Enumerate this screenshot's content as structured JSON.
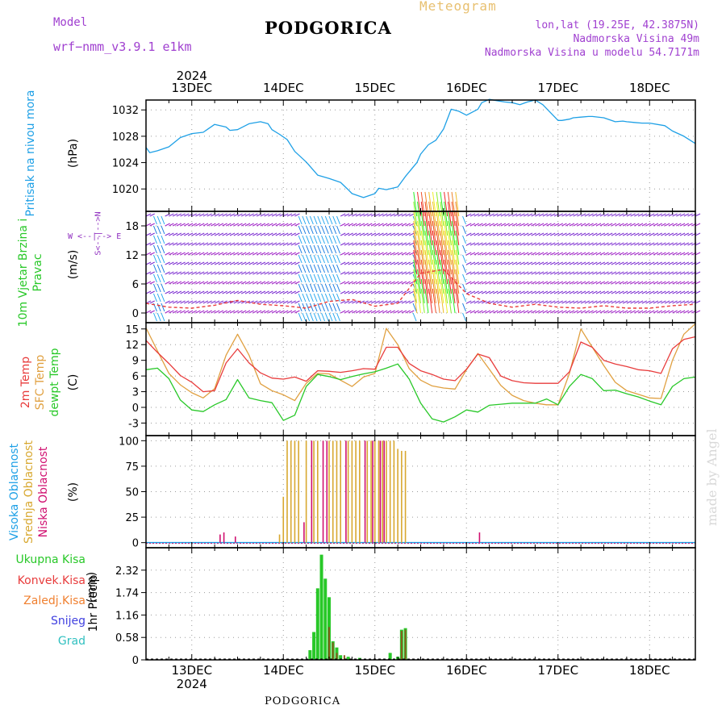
{
  "header": {
    "model_label": "Model",
    "model_name": "wrf−nmm_v3.9.1  e1km",
    "title": "PODGORICA",
    "subtitle": "Meteogram",
    "location": "lon,lat (19.25E, 42.3875N)",
    "elevation": "Nadmorska Visina 49m",
    "model_elevation": "Nadmorska Visina u modelu 54.7171m",
    "credit": "made by Angel",
    "footer": "PODGORICA",
    "year": "2024"
  },
  "colors": {
    "pressure": "#1ea0e6",
    "temp2m": "#e83c3c",
    "sfc": "#e0a040",
    "dewpt": "#28c828",
    "high_cloud": "#1ea0e6",
    "mid_cloud": "#d8a830",
    "low_cloud": "#d01070",
    "total_precip": "#28c828",
    "conv_precip": "#e83c3c",
    "frozen_precip": "#f08030",
    "snow": "#4040e0",
    "hail": "#30c0c0",
    "purple": "#9030c0"
  },
  "chart_data": [
    {
      "type": "line",
      "panel": "pressure",
      "ylabel": "Pritisak na nivou mora",
      "unit": "(hPa)",
      "x_dates": [
        "13DEC",
        "14DEC",
        "15DEC",
        "16DEC",
        "17DEC",
        "18DEC"
      ],
      "x_range_hours": [
        -12,
        132
      ],
      "ylim": [
        1016.6,
        1033.5
      ],
      "yticks": [
        1020,
        1024,
        1028,
        1032
      ],
      "series": [
        {
          "key": "pressure",
          "x": [
            -12,
            -11,
            -9,
            -6,
            -3,
            0,
            3,
            6,
            9,
            10,
            12,
            15,
            18,
            20,
            21,
            23,
            25,
            27,
            30,
            33,
            36,
            39,
            41,
            42,
            45,
            48,
            49,
            51,
            54,
            56,
            59,
            60,
            62,
            64,
            66,
            68,
            70,
            72,
            75,
            76,
            78,
            80,
            82,
            84,
            86,
            88,
            90,
            92,
            96,
            97,
            99,
            100,
            102,
            104,
            105,
            108,
            111,
            113,
            114,
            116,
            118,
            120,
            124,
            126,
            129,
            132
          ],
          "y": [
            1026.3,
            1025.5,
            1025.8,
            1026.4,
            1027.8,
            1028.4,
            1028.6,
            1029.8,
            1029.4,
            1028.9,
            1029.0,
            1029.9,
            1030.2,
            1029.9,
            1029.0,
            1028.3,
            1027.5,
            1025.7,
            1024.1,
            1022.1,
            1021.6,
            1021.0,
            1019.9,
            1019.3,
            1018.7,
            1019.3,
            1020.1,
            1019.9,
            1020.3,
            1021.9,
            1024.0,
            1025.3,
            1026.7,
            1027.4,
            1029.1,
            1032.1,
            1031.8,
            1031.2,
            1032.1,
            1033.1,
            1033.6,
            1033.4,
            1033.2,
            1033.1,
            1032.8,
            1033.2,
            1033.5,
            1032.8,
            1030.4,
            1030.4,
            1030.6,
            1030.8,
            1030.9,
            1031.0,
            1031.0,
            1030.8,
            1030.2,
            1030.3,
            1030.2,
            1030.1,
            1030.0,
            1030.0,
            1029.6,
            1028.8,
            1028.0,
            1026.9
          ]
        }
      ]
    },
    {
      "type": "line",
      "panel": "wind",
      "ylabel": "10m Vjetar Brzina i Pravac",
      "unit": "(m/s)",
      "direction_legend": "W <--|--> E",
      "direction_legend_v": "S<--|-->N",
      "ylim": [
        -2,
        21
      ],
      "yticks": [
        0,
        6,
        12,
        18
      ],
      "series": [
        {
          "key": "wind_speed",
          "x": [
            -12,
            -6,
            0,
            6,
            12,
            18,
            24,
            30,
            36,
            42,
            48,
            54,
            60,
            66,
            72,
            78,
            84,
            90,
            96,
            102,
            108,
            114,
            120,
            126,
            132
          ],
          "y": [
            2.0,
            1.2,
            1.0,
            1.6,
            2.6,
            1.8,
            1.5,
            1.0,
            2.4,
            2.8,
            1.4,
            2.0,
            8.2,
            9.0,
            4.0,
            2.0,
            1.2,
            1.8,
            1.2,
            1.0,
            1.5,
            1.0,
            1.0,
            1.5,
            1.8
          ]
        }
      ],
      "strong_wind_interval_hours": [
        59,
        70
      ]
    },
    {
      "type": "line",
      "panel": "temperature",
      "ylabel": [
        "2m Temp",
        "SFC Temp",
        "dewpt Temp"
      ],
      "unit": "(C)",
      "ylim": [
        -5.4,
        16.2
      ],
      "yticks": [
        -3,
        0,
        3,
        6,
        9,
        12,
        15
      ],
      "series": [
        {
          "key": "t2m",
          "name": "2m Temp",
          "x": [
            -12,
            -9,
            -6,
            -3,
            0,
            3,
            6,
            9,
            12,
            15,
            18,
            21,
            24,
            27,
            30,
            33,
            36,
            39,
            42,
            45,
            48,
            51,
            54,
            57,
            60,
            63,
            66,
            69,
            72,
            75,
            78,
            81,
            84,
            87,
            90,
            93,
            96,
            99,
            102,
            105,
            108,
            111,
            114,
            117,
            120,
            123,
            126,
            129,
            132
          ],
          "y": [
            12.8,
            10.5,
            8.4,
            6.1,
            4.8,
            3.0,
            3.2,
            8.5,
            11.2,
            8.5,
            6.6,
            5.6,
            5.4,
            5.8,
            5.0,
            7.0,
            6.9,
            6.7,
            7.0,
            7.4,
            7.3,
            11.5,
            11.5,
            8.4,
            7.0,
            6.3,
            5.4,
            5.1,
            7.3,
            10.2,
            9.5,
            6.0,
            5.1,
            4.7,
            4.6,
            4.6,
            4.6,
            6.8,
            12.5,
            11.5,
            9.0,
            8.3,
            7.8,
            7.2,
            7.0,
            6.5,
            11.2,
            13.0,
            13.5
          ]
        },
        {
          "key": "sfc",
          "name": "SFC Temp",
          "x": [
            -12,
            -9,
            -6,
            -3,
            0,
            3,
            6,
            9,
            12,
            15,
            18,
            21,
            24,
            27,
            30,
            33,
            36,
            39,
            42,
            45,
            48,
            51,
            54,
            57,
            60,
            63,
            66,
            69,
            72,
            75,
            78,
            81,
            84,
            87,
            90,
            93,
            96,
            99,
            102,
            105,
            108,
            111,
            114,
            117,
            120,
            123,
            126,
            129,
            132
          ],
          "y": [
            15.2,
            10.8,
            6.5,
            4.3,
            2.8,
            1.8,
            3.6,
            10.0,
            14.0,
            10.0,
            4.5,
            3.2,
            2.4,
            1.3,
            4.6,
            6.5,
            6.4,
            5.2,
            4.0,
            5.8,
            6.5,
            15.1,
            12.0,
            7.4,
            5.2,
            4.1,
            3.7,
            3.5,
            7.2,
            10.3,
            7.3,
            4.2,
            2.3,
            1.3,
            0.8,
            0.5,
            0.5,
            6.5,
            15.0,
            11.5,
            8.0,
            4.8,
            3.2,
            2.5,
            1.8,
            1.7,
            9.0,
            14.0,
            16.0
          ]
        },
        {
          "key": "dewpt",
          "name": "dewpt Temp",
          "x": [
            -12,
            -9,
            -6,
            -3,
            0,
            3,
            6,
            9,
            12,
            15,
            18,
            21,
            24,
            27,
            30,
            33,
            36,
            39,
            42,
            45,
            48,
            51,
            54,
            57,
            60,
            63,
            66,
            69,
            72,
            75,
            78,
            81,
            84,
            87,
            90,
            93,
            96,
            99,
            102,
            105,
            108,
            111,
            114,
            117,
            120,
            123,
            126,
            129,
            132
          ],
          "y": [
            7.2,
            7.5,
            5.5,
            1.4,
            -0.5,
            -0.8,
            0.5,
            1.5,
            5.3,
            1.8,
            1.3,
            0.9,
            -2.5,
            -1.5,
            4.0,
            6.3,
            5.9,
            5.3,
            5.9,
            6.4,
            6.8,
            7.5,
            8.3,
            5.4,
            0.8,
            -2.2,
            -2.8,
            -1.8,
            -0.5,
            -0.9,
            0.4,
            0.6,
            0.8,
            0.8,
            0.8,
            1.6,
            0.5,
            4.0,
            6.3,
            5.5,
            3.2,
            3.3,
            2.6,
            2.0,
            1.2,
            0.5,
            4.0,
            5.5,
            5.8
          ]
        }
      ]
    },
    {
      "type": "bar",
      "panel": "clouds",
      "ylabel": [
        "Visoka Oblacnost",
        "Srednja Oblacnost",
        "Niska Oblacnost"
      ],
      "unit": "(%)",
      "ylim": [
        -5,
        105
      ],
      "yticks": [
        0,
        25,
        50,
        75,
        100
      ],
      "series": [
        {
          "key": "mid",
          "name": "Srednja Oblacnost",
          "x": [
            23,
            24,
            25,
            26,
            27,
            28,
            30,
            32,
            33,
            36,
            37,
            38,
            39,
            41,
            42,
            43,
            44,
            46,
            47,
            48,
            49,
            50,
            51,
            52,
            53,
            54,
            55,
            56
          ],
          "y": [
            8,
            45,
            100,
            100,
            100,
            100,
            100,
            100,
            100,
            100,
            100,
            100,
            100,
            100,
            100,
            100,
            100,
            100,
            100,
            100,
            100,
            100,
            100,
            100,
            100,
            92,
            90,
            90
          ]
        },
        {
          "key": "low",
          "name": "Niska Oblacnost",
          "x": [
            7,
            8,
            11,
            29,
            31,
            34,
            35,
            40,
            45,
            47,
            49,
            50,
            75
          ],
          "y": [
            8,
            10,
            6,
            20,
            100,
            100,
            100,
            100,
            100,
            100,
            100,
            100,
            10
          ]
        }
      ]
    },
    {
      "type": "bar",
      "panel": "precip",
      "ylabel": "1hr Precip",
      "unit": "(mm)",
      "ylim": [
        0,
        2.9
      ],
      "yticks": [
        0,
        0.58,
        1.16,
        1.74,
        2.32
      ],
      "legend": [
        "Ukupna Kisa",
        "Konvek.Kisa",
        "Zaledj.Kisa",
        "Snijeg",
        "Grad"
      ],
      "series": [
        {
          "key": "total",
          "name": "Ukupna Kisa",
          "x": [
            31,
            32,
            33,
            34,
            35,
            36,
            37,
            38,
            39,
            41,
            44,
            52,
            54,
            55,
            56
          ],
          "y": [
            0.25,
            0.72,
            1.85,
            2.72,
            2.1,
            1.62,
            0.48,
            0.32,
            0.12,
            0.08,
            0.05,
            0.18,
            0.08,
            0.78,
            0.82
          ]
        },
        {
          "key": "conv",
          "name": "Konvek.Kisa",
          "x": [
            36,
            37,
            38,
            40,
            55,
            56
          ],
          "y": [
            0.85,
            0.45,
            0.18,
            0.12,
            0.75,
            0.78
          ]
        }
      ]
    }
  ]
}
